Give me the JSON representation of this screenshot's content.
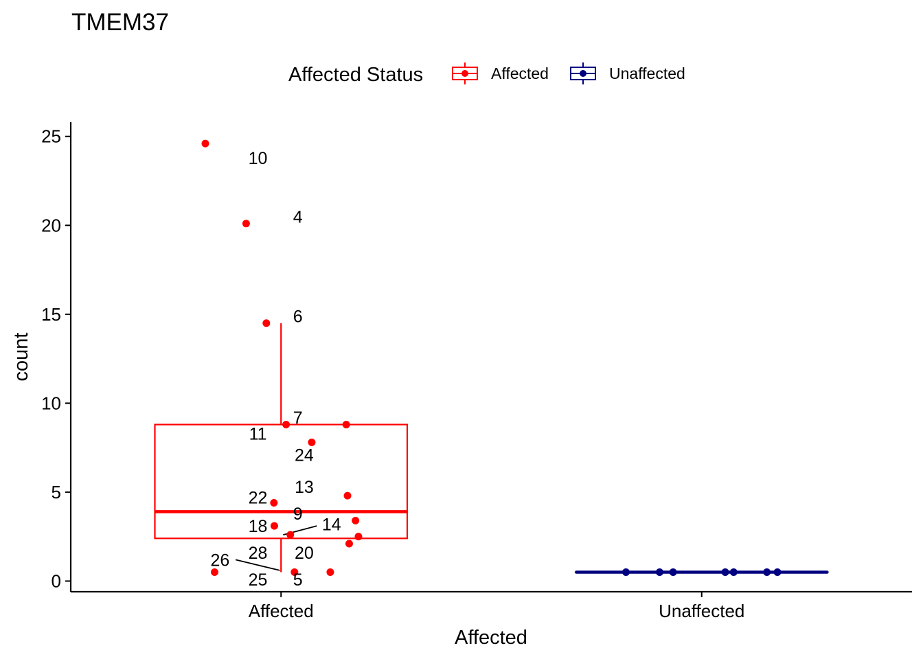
{
  "chart_data": {
    "type": "boxplot",
    "title": "TMEM37",
    "xlabel": "Affected",
    "ylabel": "count",
    "ylim": [
      -0.6,
      25.8
    ],
    "yticks": [
      0,
      5,
      10,
      15,
      20,
      25
    ],
    "categories": [
      "Affected",
      "Unaffected"
    ],
    "legend": {
      "title": "Affected Status",
      "position": "top",
      "entries": [
        {
          "label": "Affected",
          "color": "#FF0000"
        },
        {
          "label": "Unaffected",
          "color": "#000080"
        }
      ]
    },
    "boxes": [
      {
        "group": "Affected",
        "color": "#FF0000",
        "whisker_low": 0.5,
        "q1": 2.4,
        "median": 3.9,
        "q3": 8.8,
        "whisker_high": 14.5
      },
      {
        "group": "Unaffected",
        "color": "#000080",
        "whisker_low": 0.5,
        "q1": 0.5,
        "median": 0.5,
        "q3": 0.5,
        "whisker_high": 0.5
      }
    ],
    "points": [
      {
        "group": "Affected",
        "jitter": -0.18,
        "y": 24.6
      },
      {
        "group": "Affected",
        "jitter": -0.083,
        "y": 20.1
      },
      {
        "group": "Affected",
        "jitter": -0.035,
        "y": 14.5
      },
      {
        "group": "Affected",
        "jitter": 0.012,
        "y": 8.8
      },
      {
        "group": "Affected",
        "jitter": 0.155,
        "y": 8.8
      },
      {
        "group": "Affected",
        "jitter": 0.073,
        "y": 7.8
      },
      {
        "group": "Affected",
        "jitter": 0.158,
        "y": 4.8
      },
      {
        "group": "Affected",
        "jitter": -0.017,
        "y": 4.4
      },
      {
        "group": "Affected",
        "jitter": 0.177,
        "y": 3.4
      },
      {
        "group": "Affected",
        "jitter": -0.016,
        "y": 3.1
      },
      {
        "group": "Affected",
        "jitter": 0.022,
        "y": 2.6
      },
      {
        "group": "Affected",
        "jitter": 0.184,
        "y": 2.5
      },
      {
        "group": "Affected",
        "jitter": 0.162,
        "y": 2.1
      },
      {
        "group": "Affected",
        "jitter": -0.158,
        "y": 0.5
      },
      {
        "group": "Affected",
        "jitter": 0.032,
        "y": 0.5
      },
      {
        "group": "Affected",
        "jitter": 0.117,
        "y": 0.5
      },
      {
        "group": "Unaffected",
        "jitter": -0.18,
        "y": 0.5
      },
      {
        "group": "Unaffected",
        "jitter": -0.1,
        "y": 0.5
      },
      {
        "group": "Unaffected",
        "jitter": -0.068,
        "y": 0.5
      },
      {
        "group": "Unaffected",
        "jitter": 0.056,
        "y": 0.5
      },
      {
        "group": "Unaffected",
        "jitter": 0.076,
        "y": 0.5
      },
      {
        "group": "Unaffected",
        "jitter": 0.155,
        "y": 0.5
      },
      {
        "group": "Unaffected",
        "jitter": 0.18,
        "y": 0.5
      }
    ],
    "point_labels": [
      {
        "text": "10",
        "group": "Affected",
        "dx": -0.055,
        "y": 23.8
      },
      {
        "text": "4",
        "group": "Affected",
        "dx": 0.04,
        "y": 20.5
      },
      {
        "text": "6",
        "group": "Affected",
        "dx": 0.04,
        "y": 14.9
      },
      {
        "text": "7",
        "group": "Affected",
        "dx": 0.04,
        "y": 9.2
      },
      {
        "text": "11",
        "group": "Affected",
        "dx": -0.055,
        "y": 8.3
      },
      {
        "text": "24",
        "group": "Affected",
        "dx": 0.055,
        "y": 7.1
      },
      {
        "text": "13",
        "group": "Affected",
        "dx": 0.055,
        "y": 5.3
      },
      {
        "text": "22",
        "group": "Affected",
        "dx": -0.055,
        "y": 4.7
      },
      {
        "text": "9",
        "group": "Affected",
        "dx": 0.04,
        "y": 3.8
      },
      {
        "text": "18",
        "group": "Affected",
        "dx": -0.055,
        "y": 3.1
      },
      {
        "text": "14",
        "group": "Affected",
        "dx": 0.12,
        "y": 3.2
      },
      {
        "text": "28",
        "group": "Affected",
        "dx": -0.055,
        "y": 1.6
      },
      {
        "text": "20",
        "group": "Affected",
        "dx": 0.055,
        "y": 1.6
      },
      {
        "text": "26",
        "group": "Affected",
        "dx": -0.145,
        "y": 1.2
      },
      {
        "text": "25",
        "group": "Affected",
        "dx": -0.055,
        "y": 0.1
      },
      {
        "text": "5",
        "group": "Affected",
        "dx": 0.04,
        "y": 0.1
      }
    ],
    "leader_lines": [
      {
        "group": "Affected",
        "dx1": 0.005,
        "y1": 2.6,
        "dx2": 0.085,
        "y2": 3.1
      },
      {
        "group": "Affected",
        "dx1": -0.108,
        "y1": 1.2,
        "dx2": -0.003,
        "y2": 0.6
      }
    ]
  }
}
